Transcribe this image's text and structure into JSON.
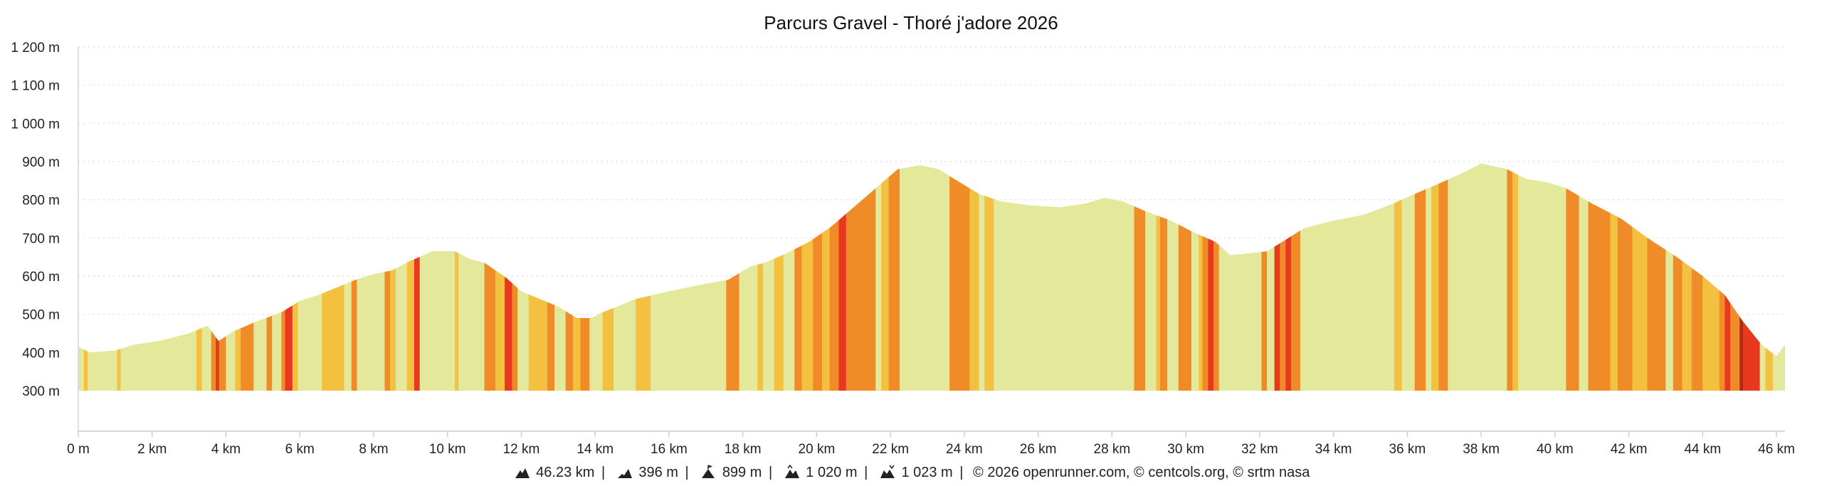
{
  "chart_data": {
    "type": "area",
    "title": "Parcurs Gravel - Thoré j'adore 2026",
    "y_unit": "m",
    "x_unit": "km",
    "ylim": [
      300,
      1200
    ],
    "xlim": [
      0,
      46.23
    ],
    "y_ticks": [
      300,
      400,
      500,
      600,
      700,
      800,
      900,
      1000,
      1100,
      1200
    ],
    "x_ticks": [
      0,
      2,
      4,
      6,
      8,
      10,
      12,
      14,
      16,
      18,
      20,
      22,
      24,
      26,
      28,
      30,
      32,
      34,
      36,
      38,
      40,
      42,
      44,
      46
    ],
    "y_tick_labels": [
      "300 m",
      "400 m",
      "500 m",
      "600 m",
      "700 m",
      "800 m",
      "900 m",
      "1 000 m",
      "1 100 m",
      "1 200 m"
    ],
    "x_tick_labels": [
      "0 m",
      "2 km",
      "4 km",
      "6 km",
      "8 km",
      "10 km",
      "12 km",
      "14 km",
      "16 km",
      "18 km",
      "20 km",
      "22 km",
      "24 km",
      "26 km",
      "28 km",
      "30 km",
      "32 km",
      "34 km",
      "36 km",
      "38 km",
      "40 km",
      "42 km",
      "44 km",
      "46 km"
    ],
    "grid": {
      "y": "dotted",
      "x": false
    },
    "profile": {
      "x": [
        0,
        0.3,
        1.0,
        1.5,
        2.2,
        3.0,
        3.5,
        3.8,
        4.2,
        4.8,
        5.5,
        6.0,
        6.5,
        7.0,
        7.5,
        8.0,
        8.5,
        9.0,
        9.6,
        10.2,
        10.6,
        11.0,
        11.6,
        12.0,
        12.5,
        13.0,
        13.5,
        13.9,
        14.2,
        14.6,
        15.1,
        16.0,
        16.5,
        17.0,
        17.6,
        18.2,
        18.6,
        19.2,
        19.8,
        20.4,
        21.0,
        21.6,
        22.2,
        22.8,
        23.3,
        23.8,
        24.4,
        25.0,
        25.8,
        26.6,
        27.3,
        27.8,
        28.3,
        28.9,
        29.6,
        30.2,
        30.8,
        31.2,
        31.8,
        32.2,
        32.7,
        33.2,
        34.0,
        34.8,
        35.5,
        36.2,
        36.8,
        37.5,
        38.0,
        38.7,
        39.2,
        39.8,
        40.3,
        41.0,
        41.8,
        42.5,
        43.3,
        44.0,
        44.6,
        45.1,
        45.6,
        46.0,
        46.23
      ],
      "y": [
        415,
        400,
        405,
        420,
        430,
        450,
        470,
        430,
        455,
        480,
        505,
        535,
        550,
        570,
        590,
        605,
        615,
        640,
        665,
        665,
        645,
        635,
        595,
        560,
        540,
        520,
        490,
        490,
        505,
        520,
        540,
        560,
        570,
        580,
        590,
        625,
        635,
        660,
        690,
        730,
        780,
        830,
        880,
        890,
        880,
        850,
        815,
        795,
        785,
        780,
        790,
        805,
        795,
        770,
        745,
        715,
        690,
        655,
        660,
        665,
        695,
        725,
        745,
        760,
        785,
        815,
        840,
        870,
        895,
        880,
        855,
        845,
        830,
        790,
        750,
        700,
        650,
        600,
        550,
        480,
        420,
        390,
        420
      ]
    },
    "gradient_classes": {
      "flat": "#e4e89a",
      "gentle": "#f3c13f",
      "moderate": "#f08c28",
      "steep": "#e8391f",
      "very_steep": "#b42a10"
    },
    "gradient_bands": [
      [
        0.0,
        0.15,
        "flat"
      ],
      [
        0.15,
        0.25,
        "gentle"
      ],
      [
        0.25,
        1.05,
        "flat"
      ],
      [
        1.05,
        1.15,
        "gentle"
      ],
      [
        1.15,
        3.2,
        "flat"
      ],
      [
        3.2,
        3.35,
        "gentle"
      ],
      [
        3.35,
        3.6,
        "flat"
      ],
      [
        3.6,
        3.72,
        "moderate"
      ],
      [
        3.72,
        3.82,
        "steep"
      ],
      [
        3.82,
        4.0,
        "moderate"
      ],
      [
        4.0,
        4.25,
        "flat"
      ],
      [
        4.25,
        4.4,
        "gentle"
      ],
      [
        4.4,
        4.75,
        "moderate"
      ],
      [
        4.75,
        5.1,
        "flat"
      ],
      [
        5.1,
        5.25,
        "moderate"
      ],
      [
        5.25,
        5.5,
        "flat"
      ],
      [
        5.5,
        5.6,
        "moderate"
      ],
      [
        5.6,
        5.8,
        "steep"
      ],
      [
        5.8,
        5.95,
        "gentle"
      ],
      [
        5.95,
        6.6,
        "flat"
      ],
      [
        6.6,
        7.2,
        "gentle"
      ],
      [
        7.2,
        7.4,
        "flat"
      ],
      [
        7.4,
        7.55,
        "moderate"
      ],
      [
        7.55,
        8.3,
        "flat"
      ],
      [
        8.3,
        8.45,
        "moderate"
      ],
      [
        8.45,
        8.6,
        "gentle"
      ],
      [
        8.6,
        8.9,
        "flat"
      ],
      [
        8.9,
        9.1,
        "gentle"
      ],
      [
        9.1,
        9.25,
        "steep"
      ],
      [
        9.25,
        10.2,
        "flat"
      ],
      [
        10.2,
        10.3,
        "gentle"
      ],
      [
        10.3,
        11.0,
        "flat"
      ],
      [
        11.0,
        11.3,
        "moderate"
      ],
      [
        11.3,
        11.55,
        "gentle"
      ],
      [
        11.55,
        11.75,
        "steep"
      ],
      [
        11.75,
        11.9,
        "moderate"
      ],
      [
        11.9,
        12.2,
        "flat"
      ],
      [
        12.2,
        12.7,
        "gentle"
      ],
      [
        12.7,
        12.9,
        "moderate"
      ],
      [
        12.9,
        13.2,
        "flat"
      ],
      [
        13.2,
        13.4,
        "moderate"
      ],
      [
        13.4,
        13.6,
        "gentle"
      ],
      [
        13.6,
        13.85,
        "moderate"
      ],
      [
        13.85,
        14.2,
        "flat"
      ],
      [
        14.2,
        14.5,
        "gentle"
      ],
      [
        14.5,
        15.1,
        "flat"
      ],
      [
        15.1,
        15.5,
        "gentle"
      ],
      [
        15.5,
        17.55,
        "flat"
      ],
      [
        17.55,
        17.9,
        "moderate"
      ],
      [
        17.9,
        18.4,
        "flat"
      ],
      [
        18.4,
        18.55,
        "gentle"
      ],
      [
        18.55,
        18.85,
        "flat"
      ],
      [
        18.85,
        19.1,
        "gentle"
      ],
      [
        19.1,
        19.4,
        "flat"
      ],
      [
        19.4,
        19.6,
        "moderate"
      ],
      [
        19.6,
        19.9,
        "gentle"
      ],
      [
        19.9,
        20.15,
        "moderate"
      ],
      [
        20.15,
        20.35,
        "gentle"
      ],
      [
        20.35,
        20.6,
        "moderate"
      ],
      [
        20.6,
        20.8,
        "steep"
      ],
      [
        20.8,
        21.6,
        "moderate"
      ],
      [
        21.6,
        21.75,
        "flat"
      ],
      [
        21.75,
        21.95,
        "gentle"
      ],
      [
        21.95,
        22.25,
        "moderate"
      ],
      [
        22.25,
        23.6,
        "flat"
      ],
      [
        23.6,
        23.75,
        "moderate"
      ],
      [
        23.75,
        24.15,
        "moderate"
      ],
      [
        24.15,
        24.4,
        "gentle"
      ],
      [
        24.4,
        24.55,
        "flat"
      ],
      [
        24.55,
        24.8,
        "gentle"
      ],
      [
        24.8,
        28.6,
        "flat"
      ],
      [
        28.6,
        28.9,
        "moderate"
      ],
      [
        28.9,
        29.2,
        "flat"
      ],
      [
        29.2,
        29.3,
        "gentle"
      ],
      [
        29.3,
        29.5,
        "moderate"
      ],
      [
        29.5,
        29.8,
        "flat"
      ],
      [
        29.8,
        30.15,
        "moderate"
      ],
      [
        30.15,
        30.35,
        "flat"
      ],
      [
        30.35,
        30.45,
        "gentle"
      ],
      [
        30.45,
        30.6,
        "moderate"
      ],
      [
        30.6,
        30.75,
        "steep"
      ],
      [
        30.75,
        30.9,
        "moderate"
      ],
      [
        30.9,
        32.05,
        "flat"
      ],
      [
        32.05,
        32.2,
        "moderate"
      ],
      [
        32.2,
        32.4,
        "flat"
      ],
      [
        32.4,
        32.55,
        "steep"
      ],
      [
        32.55,
        32.7,
        "moderate"
      ],
      [
        32.7,
        32.85,
        "steep"
      ],
      [
        32.85,
        33.1,
        "moderate"
      ],
      [
        33.1,
        35.65,
        "flat"
      ],
      [
        35.65,
        35.85,
        "gentle"
      ],
      [
        35.85,
        36.2,
        "flat"
      ],
      [
        36.2,
        36.5,
        "moderate"
      ],
      [
        36.5,
        36.65,
        "flat"
      ],
      [
        36.65,
        36.85,
        "gentle"
      ],
      [
        36.85,
        37.1,
        "moderate"
      ],
      [
        37.1,
        38.7,
        "flat"
      ],
      [
        38.7,
        38.85,
        "moderate"
      ],
      [
        38.85,
        39.0,
        "gentle"
      ],
      [
        39.0,
        40.3,
        "flat"
      ],
      [
        40.3,
        40.65,
        "moderate"
      ],
      [
        40.65,
        40.9,
        "flat"
      ],
      [
        40.9,
        41.5,
        "moderate"
      ],
      [
        41.5,
        41.7,
        "gentle"
      ],
      [
        41.7,
        42.1,
        "moderate"
      ],
      [
        42.1,
        42.5,
        "gentle"
      ],
      [
        42.5,
        43.0,
        "moderate"
      ],
      [
        43.0,
        43.2,
        "flat"
      ],
      [
        43.2,
        43.45,
        "moderate"
      ],
      [
        43.45,
        43.7,
        "gentle"
      ],
      [
        43.7,
        44.0,
        "moderate"
      ],
      [
        44.0,
        44.45,
        "gentle"
      ],
      [
        44.45,
        44.6,
        "moderate"
      ],
      [
        44.6,
        44.75,
        "steep"
      ],
      [
        44.75,
        45.0,
        "moderate"
      ],
      [
        45.0,
        45.1,
        "very_steep"
      ],
      [
        45.1,
        45.55,
        "steep"
      ],
      [
        45.55,
        45.7,
        "flat"
      ],
      [
        45.7,
        45.9,
        "gentle"
      ],
      [
        45.9,
        46.23,
        "flat"
      ]
    ]
  },
  "footer": {
    "distance": "46.23 km",
    "elevation_gain": "396 m",
    "max_altitude": "899 m",
    "positive_climb": "1 020 m",
    "negative_climb": "1 023 m",
    "copyright": "© 2026 openrunner.com, © centcols.org, © srtm nasa",
    "separator": "|"
  }
}
